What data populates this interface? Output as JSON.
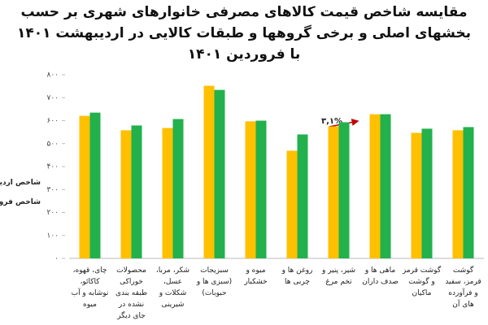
{
  "chart_data": {
    "type": "bar",
    "title": "مقایسه شاخص قیمت کالاهای مصرفی خانوارهای شهری بر حسب بخشهای اصلی و برخی گروهها و طبقات کالایی در اردیبهشت ۱۴۰۱ با فروردین ۱۴۰۱",
    "categories": [
      "چای، قهوه، کاکائو، نوشابه و آب میوه",
      "محصولات خوراکی طبقه بندی نشده در جای دیگر",
      "شکر، مربا، عسل، شکلات و شیرینی",
      "سبزیجات (سبزی ها و حبوبات)",
      "میوه و خشکبار",
      "روغن ها و چربی ها",
      "شیر، پنیر و تخم مرغ",
      "ماهی ها و صدف داران",
      "گوشت قرمز و گوشت ماکیان",
      "گوشت قرمز، سفید و فرآورده های آن"
    ],
    "series": [
      {
        "name": "شاخص اردیبهشت",
        "color": "#22b14c",
        "values": [
          635,
          579,
          607,
          734,
          600,
          540,
          593,
          628,
          565,
          572
        ]
      },
      {
        "name": "شاخص فروردین",
        "color": "#ffc000",
        "values": [
          621,
          558,
          568,
          752,
          597,
          469,
          575,
          628,
          547,
          558
        ]
      }
    ],
    "ylim": [
      0,
      800
    ],
    "yticks": [
      {
        "value": 0,
        "label": "۰"
      },
      {
        "value": 100,
        "label": "۱۰۰"
      },
      {
        "value": 200,
        "label": "۲۰۰"
      },
      {
        "value": 300,
        "label": "۳۰۰"
      },
      {
        "value": 400,
        "label": "۴۰۰"
      },
      {
        "value": 500,
        "label": "۵۰۰"
      },
      {
        "value": 600,
        "label": "۶۰۰"
      },
      {
        "value": 700,
        "label": "۷۰۰"
      },
      {
        "value": 800,
        "label": "۸۰۰"
      }
    ],
    "annotation": "۳,۱%",
    "grid": false
  }
}
